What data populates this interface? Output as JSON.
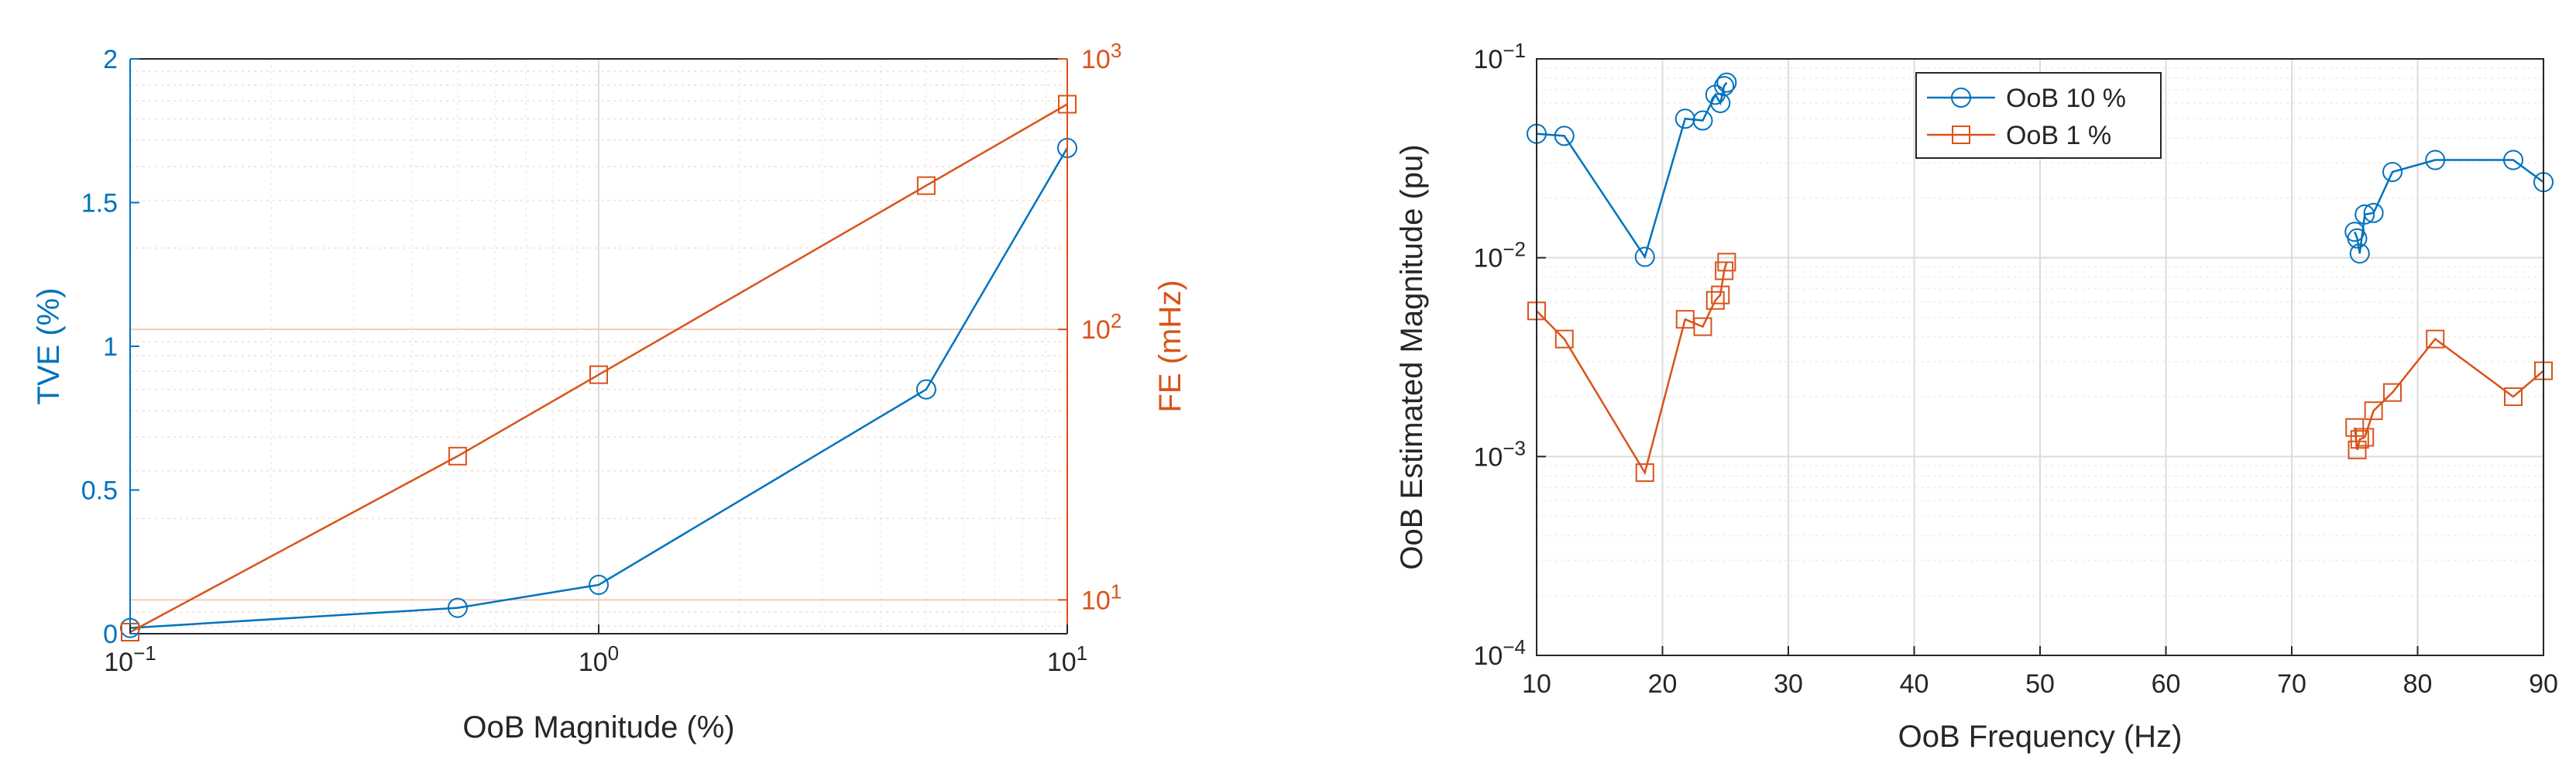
{
  "figure": {
    "background": "#ffffff",
    "axis_color": "#262626",
    "grid_color": "#dcdcdc"
  },
  "chart_data": [
    {
      "type": "line",
      "xscale": "log",
      "xlabel": "OoB Magnitude (%)",
      "xlim": [
        0.1,
        10
      ],
      "xticks": [
        {
          "value": 0.1,
          "label": "10",
          "exp": "−1"
        },
        {
          "value": 1,
          "label": "10",
          "exp": "0"
        },
        {
          "value": 10,
          "label": "10",
          "exp": "1"
        }
      ],
      "grid": true,
      "left_axis": {
        "label": "TVE (%)",
        "color": "#0072BD",
        "scale": "linear",
        "ylim": [
          0,
          2
        ],
        "ticks": [
          {
            "value": 0,
            "label": "0"
          },
          {
            "value": 0.5,
            "label": "0.5"
          },
          {
            "value": 1,
            "label": "1"
          },
          {
            "value": 1.5,
            "label": "1.5"
          },
          {
            "value": 2,
            "label": "2"
          }
        ]
      },
      "right_axis": {
        "label": "FE (mHz)",
        "color": "#D95319",
        "scale": "log",
        "ylim": [
          7.5,
          1000
        ],
        "ticks": [
          {
            "value": 10,
            "label": "10",
            "exp": "1"
          },
          {
            "value": 100,
            "label": "10",
            "exp": "2"
          },
          {
            "value": 1000,
            "label": "10",
            "exp": "3"
          }
        ]
      },
      "series": [
        {
          "axis": "left",
          "marker": "circle",
          "color": "#0072BD",
          "x": [
            0.1,
            0.5,
            1,
            5,
            10
          ],
          "y": [
            0.02,
            0.09,
            0.17,
            0.85,
            1.69
          ]
        },
        {
          "axis": "right",
          "marker": "square",
          "color": "#D95319",
          "x": [
            0.1,
            0.5,
            1,
            5,
            10
          ],
          "y": [
            7.6,
            34,
            68,
            340,
            680
          ]
        }
      ]
    },
    {
      "type": "line",
      "xscale": "linear",
      "yscale": "log",
      "xlabel": "OoB Frequency (Hz)",
      "ylabel": "OoB Estimated Magnitude (pu)",
      "xlim": [
        10,
        90
      ],
      "ylim": [
        0.0001,
        0.1
      ],
      "xticks": [
        {
          "value": 10,
          "label": "10"
        },
        {
          "value": 20,
          "label": "20"
        },
        {
          "value": 30,
          "label": "30"
        },
        {
          "value": 40,
          "label": "40"
        },
        {
          "value": 50,
          "label": "50"
        },
        {
          "value": 60,
          "label": "60"
        },
        {
          "value": 70,
          "label": "70"
        },
        {
          "value": 80,
          "label": "80"
        },
        {
          "value": 90,
          "label": "90"
        }
      ],
      "yticks": [
        {
          "value": 0.0001,
          "label": "10",
          "exp": "−4"
        },
        {
          "value": 0.001,
          "label": "10",
          "exp": "−3"
        },
        {
          "value": 0.01,
          "label": "10",
          "exp": "−2"
        },
        {
          "value": 0.1,
          "label": "10",
          "exp": "−1"
        }
      ],
      "grid": true,
      "legend": {
        "position": "top-left-center"
      },
      "series": [
        {
          "name": "OoB 10 %",
          "marker": "circle",
          "color": "#0072BD",
          "segments": [
            {
              "x": [
                10,
                12.2,
                18.6,
                21.8,
                23.2,
                24.2,
                24.6,
                24.9,
                25.1
              ],
              "y": [
                0.042,
                0.041,
                0.0101,
                0.05,
                0.049,
                0.066,
                0.06,
                0.073,
                0.076
              ]
            },
            {
              "x": [
                75,
                75.2,
                75.4,
                75.8,
                76.5,
                78,
                81.4,
                87.6,
                90
              ],
              "y": [
                0.0135,
                0.0125,
                0.0105,
                0.0165,
                0.0168,
                0.027,
                0.031,
                0.031,
                0.024
              ]
            }
          ]
        },
        {
          "name": "OoB 1 %",
          "marker": "square",
          "color": "#D95319",
          "segments": [
            {
              "x": [
                10,
                12.2,
                18.6,
                21.8,
                23.2,
                24.2,
                24.6,
                24.9,
                25.1
              ],
              "y": [
                0.0054,
                0.0039,
                0.00083,
                0.0049,
                0.0045,
                0.0061,
                0.0065,
                0.0086,
                0.0095
              ]
            },
            {
              "x": [
                75,
                75.2,
                75.4,
                75.8,
                76.5,
                78,
                81.4,
                87.6,
                90
              ],
              "y": [
                0.0014,
                0.00108,
                0.00122,
                0.00125,
                0.0017,
                0.0021,
                0.0039,
                0.002,
                0.0027
              ]
            }
          ]
        }
      ]
    }
  ]
}
